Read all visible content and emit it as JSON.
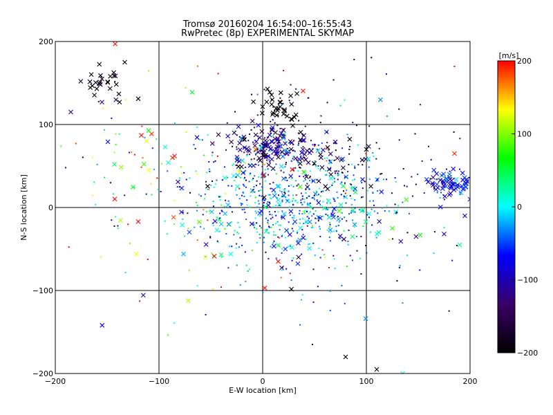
{
  "chart_data": {
    "type": "scatter",
    "title": "Tromsø 20160204 16:54:00–16:55:43",
    "subtitle": "RwPretec (8p) EXPERIMENTAL SKYMAP",
    "xlabel": "E-W location [km]",
    "ylabel": "N-S location [km]",
    "xlim": [
      -200,
      200
    ],
    "ylim": [
      -200,
      200
    ],
    "xticks": [
      "-200",
      "-100",
      "0",
      "100",
      "200"
    ],
    "yticks": [
      "-200",
      "-100",
      "0",
      "100",
      "200"
    ],
    "grid": true,
    "marker_types": [
      "x",
      "dot"
    ],
    "colorbar": {
      "label": "[m/s]",
      "range": [
        -200,
        200
      ],
      "ticks": [
        "200",
        "100",
        "0",
        "-100",
        "-200"
      ],
      "colormap": "rainbow",
      "stops": [
        "#000000",
        "#3a0068",
        "#0000ff",
        "#00ffff",
        "#00ff00",
        "#ffff00",
        "#ff0000"
      ]
    },
    "clusters": [
      {
        "cx": -150,
        "cy": 150,
        "sx": 12,
        "sy": 10,
        "n": 28,
        "v": -195,
        "vs": 20,
        "xf": 0.9
      },
      {
        "cx": 15,
        "cy": 122,
        "sx": 10,
        "sy": 12,
        "n": 45,
        "v": -200,
        "vs": 15,
        "xf": 0.7
      },
      {
        "cx": 10,
        "cy": 75,
        "sx": 22,
        "sy": 12,
        "n": 170,
        "v": -120,
        "vs": 35,
        "xf": 0.55
      },
      {
        "cx": 55,
        "cy": 55,
        "sx": 30,
        "sy": 18,
        "n": 70,
        "v": -185,
        "vs": 25,
        "xf": 0.4
      },
      {
        "cx": 180,
        "cy": 30,
        "sx": 14,
        "sy": 10,
        "n": 85,
        "v": -70,
        "vs": 30,
        "xf": 0.6
      },
      {
        "cx": 30,
        "cy": 10,
        "sx": 50,
        "sy": 30,
        "n": 520,
        "v": -30,
        "vs": 40,
        "xf": 0.2
      },
      {
        "cx": -20,
        "cy": 20,
        "sx": 80,
        "sy": 60,
        "n": 190,
        "v": 0,
        "vs": 120,
        "xf": 0.15
      },
      {
        "cx": 90,
        "cy": 30,
        "sx": 70,
        "sy": 60,
        "n": 90,
        "v": -160,
        "vs": 50,
        "xf": 0.1
      },
      {
        "cx": -110,
        "cy": 30,
        "sx": 60,
        "sy": 70,
        "n": 45,
        "v": 120,
        "vs": 90,
        "xf": 0.25
      },
      {
        "cx": 20,
        "cy": -40,
        "sx": 60,
        "sy": 40,
        "n": 110,
        "v": -10,
        "vs": 60,
        "xf": 0.1
      }
    ],
    "points": [
      {
        "x": -185,
        "y": 115,
        "v": -110,
        "m": "x"
      },
      {
        "x": -133,
        "y": 175,
        "v": -200,
        "m": "x"
      },
      {
        "x": 80,
        "y": -180,
        "v": -200,
        "m": "x"
      },
      {
        "x": 110,
        "y": -195,
        "v": -200,
        "m": "x"
      },
      {
        "x": 135,
        "y": -200,
        "v": 20,
        "m": "x"
      },
      {
        "x": 48,
        "y": -165,
        "v": -200,
        "m": "dot"
      },
      {
        "x": 2,
        "y": -97,
        "v": 200,
        "m": "x"
      },
      {
        "x": -40,
        "y": -96,
        "v": 200,
        "m": "dot"
      },
      {
        "x": -120,
        "y": -17,
        "v": 200,
        "m": "x"
      },
      {
        "x": -85,
        "y": 62,
        "v": 200,
        "m": "x"
      },
      {
        "x": -87,
        "y": 60,
        "v": 190,
        "m": "x"
      },
      {
        "x": -117,
        "y": 87,
        "v": 200,
        "m": "x"
      },
      {
        "x": -112,
        "y": 80,
        "v": 130,
        "m": "x"
      },
      {
        "x": -110,
        "y": 45,
        "v": 130,
        "m": "x"
      },
      {
        "x": -143,
        "y": 52,
        "v": 40,
        "m": "x"
      },
      {
        "x": -155,
        "y": 127,
        "v": -130,
        "m": "x"
      },
      {
        "x": -138,
        "y": 127,
        "v": -200,
        "m": "x"
      },
      {
        "x": -120,
        "y": 131,
        "v": -190,
        "m": "x"
      },
      {
        "x": 185,
        "y": 65,
        "v": 190,
        "m": "x"
      },
      {
        "x": 200,
        "y": 10,
        "v": -60,
        "m": "x"
      },
      {
        "x": 195,
        "y": -10,
        "v": -80,
        "m": "x"
      },
      {
        "x": 190,
        "y": -45,
        "v": 30,
        "m": "x"
      },
      {
        "x": 175,
        "y": -32,
        "v": -100,
        "m": "x"
      },
      {
        "x": 148,
        "y": -35,
        "v": -130,
        "m": "x"
      },
      {
        "x": 125,
        "y": -25,
        "v": 80,
        "m": "x"
      },
      {
        "x": 15,
        "y": -65,
        "v": 200,
        "m": "x"
      },
      {
        "x": 20,
        "y": 165,
        "v": 200,
        "m": "dot"
      },
      {
        "x": 185,
        "y": 170,
        "v": 200,
        "m": "dot"
      },
      {
        "x": 120,
        "y": 110,
        "v": -20,
        "m": "dot"
      },
      {
        "x": 95,
        "y": -80,
        "v": -130,
        "m": "dot"
      },
      {
        "x": 135,
        "y": -115,
        "v": -30,
        "m": "dot"
      },
      {
        "x": 165,
        "y": -55,
        "v": -10,
        "m": "dot"
      },
      {
        "x": -190,
        "y": 48,
        "v": -100,
        "m": "dot"
      }
    ]
  }
}
